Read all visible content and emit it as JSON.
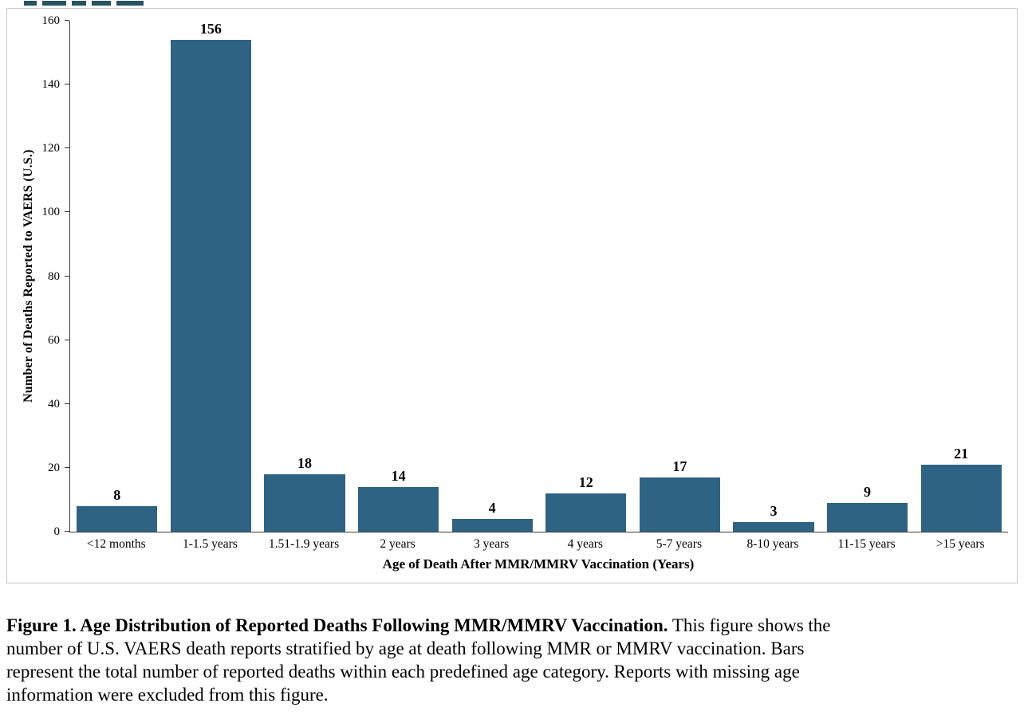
{
  "chart_data": {
    "type": "bar",
    "categories": [
      "<12 months",
      "1-1.5 years",
      "1.51-1.9 years",
      "2 years",
      "3 years",
      "4 years",
      "5-7 years",
      "8-10 years",
      "11-15 years",
      ">15 years"
    ],
    "values": [
      8,
      156,
      18,
      14,
      4,
      12,
      17,
      3,
      9,
      21
    ],
    "xlabel": "Age of Death After MMR/MMRV Vaccination (Years)",
    "ylabel": "Number of Deaths Reported to VAERS (U.S.)",
    "ylim": [
      0,
      160
    ],
    "yticks": [
      0,
      20,
      40,
      60,
      80,
      100,
      120,
      140,
      160
    ],
    "bar_color": "#2E6384",
    "grid": false,
    "legend": false,
    "value_labels": true,
    "title": ""
  },
  "caption": {
    "bold": "Figure 1. Age Distribution of Reported Deaths Following MMR/MMRV Vaccination.",
    "line1_rest": " This figure shows the",
    "lines": [
      "number of U.S. VAERS death reports stratified by age at death following MMR or MMRV vaccination. Bars",
      "represent the total number of reported deaths within each predefined age category. Reports with missing age",
      "information were excluded from this figure."
    ]
  }
}
